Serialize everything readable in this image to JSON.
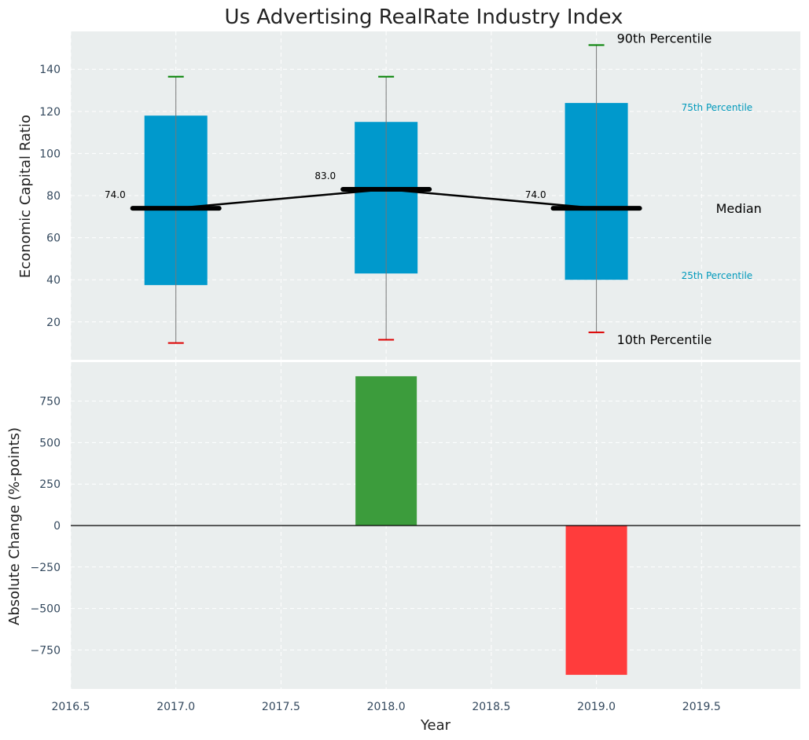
{
  "chart_data": [
    {
      "type": "box",
      "title": "Us Advertising RealRate Industry Index",
      "ylabel": "Economic Capital Ratio",
      "x": [
        2017.0,
        2018.0,
        2019.0
      ],
      "p10": [
        10,
        11.5,
        15
      ],
      "p25": [
        37.5,
        43,
        40
      ],
      "median": [
        74.0,
        83.0,
        74.0
      ],
      "p75": [
        118,
        115,
        124
      ],
      "p90": [
        136.5,
        136.5,
        151.5
      ],
      "median_labels": [
        "74.0",
        "83.0",
        "74.0"
      ],
      "ylim": [
        2,
        158
      ],
      "yticks": [
        20,
        40,
        60,
        80,
        100,
        120,
        140
      ],
      "ytick_labels": [
        "20",
        "40",
        "60",
        "80",
        "100",
        "120",
        "140"
      ],
      "annotations": {
        "p90": "90th Percentile",
        "p75": "75th Percentile",
        "median": "Median",
        "p25": "25th Percentile",
        "p10": "10th Percentile"
      },
      "colors": {
        "box": "#0099cc",
        "whisker_top": "#008000",
        "whisker_bottom": "#dd0000",
        "median": "#000000",
        "background": "#eaeeee",
        "annotation_small": "#0099bb"
      },
      "grid": true
    },
    {
      "type": "bar",
      "ylabel": "Absolute Change (%-points)",
      "xlabel": "Year",
      "x": [
        2018.0,
        2019.0
      ],
      "values": [
        900,
        -900
      ],
      "bar_colors": [
        "#3c9c3c",
        "#ff3c3c"
      ],
      "ylim": [
        -985,
        985
      ],
      "yticks": [
        -750,
        -500,
        -250,
        0,
        250,
        500,
        750
      ],
      "ytick_labels": [
        "−750",
        "−500",
        "−250",
        "0",
        "250",
        "500",
        "750"
      ],
      "xlim": [
        2016.5,
        2019.97
      ],
      "xticks": [
        2016.5,
        2017.0,
        2017.5,
        2018.0,
        2018.5,
        2019.0,
        2019.5
      ],
      "xtick_labels": [
        "2016.5",
        "2017.0",
        "2017.5",
        "2018.0",
        "2018.5",
        "2019.0",
        "2019.5"
      ],
      "grid": true
    }
  ]
}
